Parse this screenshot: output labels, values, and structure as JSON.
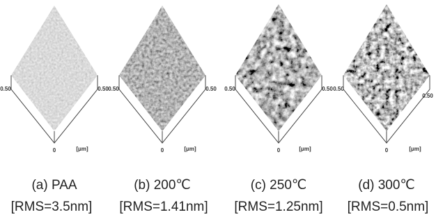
{
  "panels": [
    {
      "caption": "(a) PAA",
      "rms": "[RMS=3.5nm]",
      "axis_left": "0.50",
      "axis_right": "0.50",
      "axis_bottom": "0",
      "unit": "[μm]"
    },
    {
      "caption": "(b) 200℃",
      "rms": "[RMS=1.41nm]",
      "axis_left": "0.50",
      "axis_right": "0.50",
      "axis_bottom": "0",
      "unit": "[μm]"
    },
    {
      "caption": "(c) 250℃",
      "rms": "[RMS=1.25nm]",
      "axis_left": "0.50",
      "axis_right": "0.50",
      "axis_bottom": "0",
      "unit": "[μm]"
    },
    {
      "caption": "(d) 300℃",
      "rms": "[RMS=0.5nm]",
      "axis_left": "0.50",
      "axis_right": "0.50",
      "axis_bottom": "0",
      "unit": "[μm]"
    }
  ]
}
